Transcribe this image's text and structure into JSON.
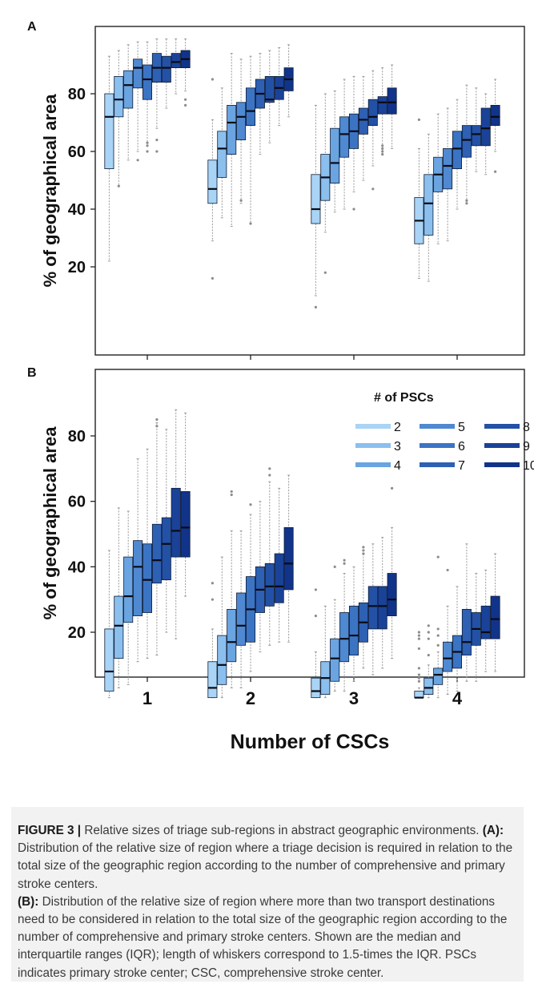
{
  "colors": {
    "series": [
      "#a9d4f5",
      "#8bbfee",
      "#6aa4e1",
      "#4f89d1",
      "#3c74c4",
      "#2e60b3",
      "#2351a6",
      "#1a4298",
      "#11348a"
    ],
    "median": "#0a0a14",
    "box_edge": "#0d1c36",
    "whisker": "#9a9a9a",
    "outlier": "#8c8c8c",
    "caption_bg": "#f2f2f2"
  },
  "chart_data": [
    {
      "type": "boxplot",
      "panel_label": "A",
      "ylabel": "% of geographical area",
      "xlabel": "",
      "yticks": [
        20,
        40,
        60,
        80
      ],
      "ylim": [
        0,
        100
      ],
      "x_categories": [
        1,
        2,
        3,
        4
      ],
      "series_names": [
        "2",
        "3",
        "4",
        "5",
        "6",
        "7",
        "8",
        "9",
        "10"
      ],
      "groups": [
        {
          "csc": 1,
          "boxes": [
            {
              "psc": 2,
              "min": 22,
              "q1": 54,
              "median": 72,
              "q3": 80,
              "max": 93,
              "outliers": []
            },
            {
              "psc": 3,
              "min": 48,
              "q1": 72,
              "median": 78,
              "q3": 86,
              "max": 95,
              "outliers": [
                48
              ]
            },
            {
              "psc": 4,
              "min": 57,
              "q1": 75,
              "median": 83,
              "q3": 88,
              "max": 97,
              "outliers": []
            },
            {
              "psc": 5,
              "min": 60,
              "q1": 82,
              "median": 89,
              "q3": 92,
              "max": 98,
              "outliers": [
                57
              ]
            },
            {
              "psc": 6,
              "min": 63,
              "q1": 78,
              "median": 85,
              "q3": 90,
              "max": 98,
              "outliers": [
                63,
                62,
                60
              ]
            },
            {
              "psc": 7,
              "min": 68,
              "q1": 84,
              "median": 89,
              "q3": 94,
              "max": 99,
              "outliers": [
                64,
                60
              ]
            },
            {
              "psc": 8,
              "min": 75,
              "q1": 84,
              "median": 89,
              "q3": 93,
              "max": 99,
              "outliers": []
            },
            {
              "psc": 9,
              "min": 80,
              "q1": 89,
              "median": 91,
              "q3": 94,
              "max": 99,
              "outliers": []
            },
            {
              "psc": 10,
              "min": 81,
              "q1": 89,
              "median": 92,
              "q3": 95,
              "max": 99,
              "outliers": [
                78,
                76
              ]
            }
          ]
        },
        {
          "csc": 2,
          "boxes": [
            {
              "psc": 2,
              "min": 29,
              "q1": 42,
              "median": 47,
              "q3": 57,
              "max": 71,
              "outliers": [
                85,
                16
              ]
            },
            {
              "psc": 3,
              "min": 37,
              "q1": 51,
              "median": 61,
              "q3": 67,
              "max": 82,
              "outliers": []
            },
            {
              "psc": 4,
              "min": 34,
              "q1": 59,
              "median": 70,
              "q3": 76,
              "max": 94,
              "outliers": []
            },
            {
              "psc": 5,
              "min": 42,
              "q1": 64,
              "median": 72,
              "q3": 77,
              "max": 92,
              "outliers": [
                43
              ]
            },
            {
              "psc": 6,
              "min": 35,
              "q1": 69,
              "median": 74,
              "q3": 82,
              "max": 93,
              "outliers": [
                35
              ]
            },
            {
              "psc": 7,
              "min": 59,
              "q1": 75,
              "median": 80,
              "q3": 85,
              "max": 94,
              "outliers": []
            },
            {
              "psc": 8,
              "min": 63,
              "q1": 77,
              "median": 78,
              "q3": 86,
              "max": 95,
              "outliers": []
            },
            {
              "psc": 9,
              "min": 69,
              "q1": 78,
              "median": 82,
              "q3": 86,
              "max": 96,
              "outliers": []
            },
            {
              "psc": 10,
              "min": 72,
              "q1": 81,
              "median": 85,
              "q3": 89,
              "max": 97,
              "outliers": []
            }
          ]
        },
        {
          "csc": 3,
          "boxes": [
            {
              "psc": 2,
              "min": 10,
              "q1": 35,
              "median": 40,
              "q3": 52,
              "max": 76,
              "outliers": [
                6
              ]
            },
            {
              "psc": 3,
              "min": 32,
              "q1": 43,
              "median": 51,
              "q3": 59,
              "max": 80,
              "outliers": [
                18
              ]
            },
            {
              "psc": 4,
              "min": 39,
              "q1": 49,
              "median": 56,
              "q3": 68,
              "max": 81,
              "outliers": []
            },
            {
              "psc": 5,
              "min": 40,
              "q1": 58,
              "median": 66,
              "q3": 72,
              "max": 85,
              "outliers": []
            },
            {
              "psc": 6,
              "min": 46,
              "q1": 61,
              "median": 67,
              "q3": 73,
              "max": 86,
              "outliers": [
                40
              ]
            },
            {
              "psc": 7,
              "min": 50,
              "q1": 66,
              "median": 71,
              "q3": 75,
              "max": 86,
              "outliers": []
            },
            {
              "psc": 8,
              "min": 55,
              "q1": 69,
              "median": 72,
              "q3": 78,
              "max": 88,
              "outliers": [
                47
              ]
            },
            {
              "psc": 9,
              "min": 59,
              "q1": 73,
              "median": 77,
              "q3": 79,
              "max": 89,
              "outliers": [
                60,
                61,
                59,
                62
              ]
            },
            {
              "psc": 10,
              "min": 61,
              "q1": 73,
              "median": 77,
              "q3": 82,
              "max": 90,
              "outliers": []
            }
          ]
        },
        {
          "csc": 4,
          "boxes": [
            {
              "psc": 2,
              "min": 16,
              "q1": 28,
              "median": 36,
              "q3": 44,
              "max": 61,
              "outliers": [
                71
              ]
            },
            {
              "psc": 3,
              "min": 15,
              "q1": 31,
              "median": 42,
              "q3": 52,
              "max": 66,
              "outliers": []
            },
            {
              "psc": 4,
              "min": 28,
              "q1": 46,
              "median": 52,
              "q3": 58,
              "max": 73,
              "outliers": []
            },
            {
              "psc": 5,
              "min": 29,
              "q1": 47,
              "median": 55,
              "q3": 61,
              "max": 75,
              "outliers": []
            },
            {
              "psc": 6,
              "min": 40,
              "q1": 54,
              "median": 61,
              "q3": 67,
              "max": 78,
              "outliers": []
            },
            {
              "psc": 7,
              "min": 42,
              "q1": 58,
              "median": 64,
              "q3": 69,
              "max": 83,
              "outliers": [
                43,
                42
              ]
            },
            {
              "psc": 8,
              "min": 53,
              "q1": 62,
              "median": 66,
              "q3": 69,
              "max": 82,
              "outliers": []
            },
            {
              "psc": 9,
              "min": 52,
              "q1": 62,
              "median": 68,
              "q3": 75,
              "max": 80,
              "outliers": []
            },
            {
              "psc": 10,
              "min": 60,
              "q1": 69,
              "median": 72,
              "q3": 76,
              "max": 85,
              "outliers": [
                53
              ]
            }
          ]
        }
      ]
    },
    {
      "type": "boxplot",
      "panel_label": "B",
      "ylabel": "% of geographical area",
      "xlabel": "Number of CSCs",
      "xticks": [
        "1",
        "2",
        "3",
        "4"
      ],
      "yticks": [
        20,
        40,
        60,
        80
      ],
      "ylim": [
        0,
        100
      ],
      "x_categories": [
        1,
        2,
        3,
        4
      ],
      "series_names": [
        "2",
        "3",
        "4",
        "5",
        "6",
        "7",
        "8",
        "9",
        "10"
      ],
      "legend": {
        "title": "# of PSCs",
        "position": "top-right",
        "entries": [
          "2",
          "3",
          "4",
          "5",
          "6",
          "7",
          "8",
          "9",
          "10"
        ]
      },
      "groups": [
        {
          "csc": 1,
          "boxes": [
            {
              "psc": 2,
              "min": 0,
              "q1": 2,
              "median": 8,
              "q3": 21,
              "max": 45,
              "outliers": []
            },
            {
              "psc": 3,
              "min": 3,
              "q1": 12,
              "median": 22,
              "q3": 31,
              "max": 58,
              "outliers": []
            },
            {
              "psc": 4,
              "min": 4,
              "q1": 23,
              "median": 31,
              "q3": 43,
              "max": 57,
              "outliers": []
            },
            {
              "psc": 5,
              "min": 11,
              "q1": 25,
              "median": 40,
              "q3": 48,
              "max": 73,
              "outliers": []
            },
            {
              "psc": 6,
              "min": 12,
              "q1": 26,
              "median": 36,
              "q3": 47,
              "max": 76,
              "outliers": []
            },
            {
              "psc": 7,
              "min": 13,
              "q1": 35,
              "median": 42,
              "q3": 53,
              "max": 84,
              "outliers": [
                83,
                85
              ]
            },
            {
              "psc": 8,
              "min": 20,
              "q1": 36,
              "median": 47,
              "q3": 55,
              "max": 82,
              "outliers": []
            },
            {
              "psc": 9,
              "min": 18,
              "q1": 43,
              "median": 51,
              "q3": 64,
              "max": 88,
              "outliers": []
            },
            {
              "psc": 10,
              "min": 31,
              "q1": 43,
              "median": 52,
              "q3": 63,
              "max": 87,
              "outliers": []
            }
          ]
        },
        {
          "csc": 2,
          "boxes": [
            {
              "psc": 2,
              "min": 0,
              "q1": 0,
              "median": 3,
              "q3": 11,
              "max": 21,
              "outliers": [
                35,
                30
              ]
            },
            {
              "psc": 3,
              "min": 0,
              "q1": 4,
              "median": 10,
              "q3": 19,
              "max": 43,
              "outliers": []
            },
            {
              "psc": 4,
              "min": 3,
              "q1": 11,
              "median": 17,
              "q3": 27,
              "max": 51,
              "outliers": [
                63,
                62
              ]
            },
            {
              "psc": 5,
              "min": 3,
              "q1": 16,
              "median": 22,
              "q3": 32,
              "max": 51,
              "outliers": []
            },
            {
              "psc": 6,
              "min": 8,
              "q1": 17,
              "median": 27,
              "q3": 37,
              "max": 56,
              "outliers": [
                59
              ]
            },
            {
              "psc": 7,
              "min": 14,
              "q1": 26,
              "median": 33,
              "q3": 40,
              "max": 60,
              "outliers": []
            },
            {
              "psc": 8,
              "min": 16,
              "q1": 28,
              "median": 34,
              "q3": 41,
              "max": 66,
              "outliers": [
                70,
                68
              ]
            },
            {
              "psc": 9,
              "min": 17,
              "q1": 29,
              "median": 34,
              "q3": 44,
              "max": 64,
              "outliers": []
            },
            {
              "psc": 10,
              "min": 17,
              "q1": 33,
              "median": 41,
              "q3": 52,
              "max": 68,
              "outliers": []
            }
          ]
        },
        {
          "csc": 3,
          "boxes": [
            {
              "psc": 2,
              "min": 0,
              "q1": 0,
              "median": 2,
              "q3": 6,
              "max": 14,
              "outliers": [
                33,
                25
              ]
            },
            {
              "psc": 3,
              "min": 0,
              "q1": 1,
              "median": 6,
              "q3": 11,
              "max": 28,
              "outliers": []
            },
            {
              "psc": 4,
              "min": 2,
              "q1": 5,
              "median": 12,
              "q3": 18,
              "max": 30,
              "outliers": [
                40
              ]
            },
            {
              "psc": 5,
              "min": 2,
              "q1": 11,
              "median": 18,
              "q3": 26,
              "max": 38,
              "outliers": [
                42,
                41
              ]
            },
            {
              "psc": 6,
              "min": 5,
              "q1": 13,
              "median": 19,
              "q3": 28,
              "max": 40,
              "outliers": []
            },
            {
              "psc": 7,
              "min": 9,
              "q1": 17,
              "median": 23,
              "q3": 29,
              "max": 44,
              "outliers": [
                46,
                45,
                44
              ]
            },
            {
              "psc": 8,
              "min": 7,
              "q1": 21,
              "median": 28,
              "q3": 34,
              "max": 47,
              "outliers": []
            },
            {
              "psc": 9,
              "min": 9,
              "q1": 21,
              "median": 28,
              "q3": 34,
              "max": 49,
              "outliers": []
            },
            {
              "psc": 10,
              "min": 12,
              "q1": 25,
              "median": 30,
              "q3": 38,
              "max": 52,
              "outliers": [
                64
              ]
            }
          ]
        },
        {
          "csc": 4,
          "boxes": [
            {
              "psc": 2,
              "min": 0,
              "q1": 0,
              "median": 0,
              "q3": 2,
              "max": 3,
              "outliers": [
                20,
                19,
                18,
                15,
                9,
                7,
                6,
                5
              ]
            },
            {
              "psc": 3,
              "min": 0,
              "q1": 1,
              "median": 3,
              "q3": 6,
              "max": 10,
              "outliers": [
                22,
                20,
                18,
                13
              ]
            },
            {
              "psc": 4,
              "min": 0,
              "q1": 4,
              "median": 7,
              "q3": 9,
              "max": 14,
              "outliers": [
                43,
                21,
                19,
                16
              ]
            },
            {
              "psc": 5,
              "min": 1,
              "q1": 8,
              "median": 12,
              "q3": 17,
              "max": 28,
              "outliers": [
                39
              ]
            },
            {
              "psc": 6,
              "min": 2,
              "q1": 9,
              "median": 14,
              "q3": 19,
              "max": 34,
              "outliers": []
            },
            {
              "psc": 7,
              "min": 5,
              "q1": 13,
              "median": 17,
              "q3": 27,
              "max": 47,
              "outliers": []
            },
            {
              "psc": 8,
              "min": 5,
              "q1": 16,
              "median": 21,
              "q3": 26,
              "max": 38,
              "outliers": []
            },
            {
              "psc": 9,
              "min": 8,
              "q1": 18,
              "median": 20,
              "q3": 28,
              "max": 39,
              "outliers": []
            },
            {
              "psc": 10,
              "min": 8,
              "q1": 18,
              "median": 24,
              "q3": 31,
              "max": 44,
              "outliers": []
            }
          ]
        }
      ]
    }
  ],
  "caption": {
    "figure_label": "FIGURE 3 |",
    "title": "Relative sizes of triage sub-regions in abstract geographic environments.",
    "a_label": "(A):",
    "a_text": "Distribution of the relative size of region where a triage decision is required in relation to the total size of the geographic region according to the number of comprehensive and primary stroke centers.",
    "b_label": "(B):",
    "b_text": "Distribution of the relative size of region where more than two transport destinations need to be considered in relation to the total size of the geographic region according to the number of comprehensive and primary stroke centers. Shown are the median and interquartile ranges (IQR); length of whiskers correspond to 1.5-times the IQR. PSCs indicates primary stroke center; CSC, comprehensive stroke center."
  }
}
